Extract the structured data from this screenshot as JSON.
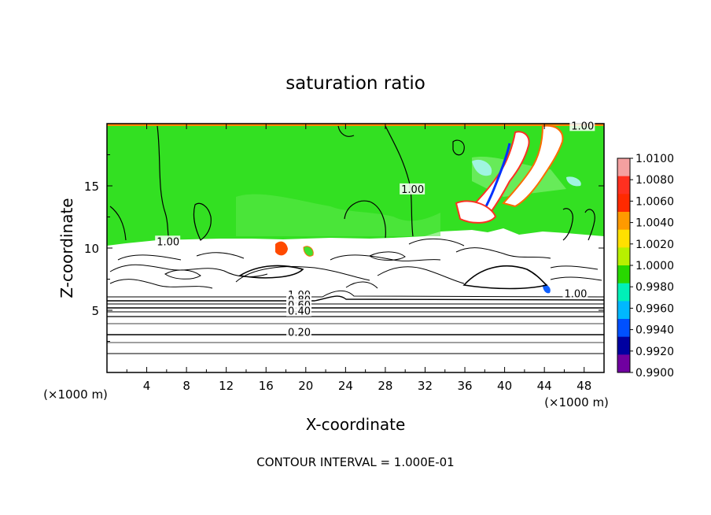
{
  "chart_data": {
    "type": "heatmap",
    "title": "saturation ratio",
    "xlabel": "X-coordinate",
    "ylabel": "Z-coordinate",
    "x_unit": "(×1000 m)",
    "xlim": [
      0,
      50
    ],
    "ylim": [
      0,
      20
    ],
    "x_ticks": [
      "4",
      "8",
      "12",
      "16",
      "20",
      "24",
      "28",
      "32",
      "36",
      "40",
      "44",
      "48"
    ],
    "x_tick_values": [
      4,
      8,
      12,
      16,
      20,
      24,
      28,
      32,
      36,
      40,
      44,
      48
    ],
    "y_ticks": [
      "5",
      "10",
      "15"
    ],
    "y_tick_values": [
      5,
      10,
      15
    ],
    "footer": "CONTOUR INTERVAL = 1.000E-01",
    "colorbar": {
      "levels": [
        "1.0100",
        "1.0080",
        "1.0060",
        "1.0040",
        "1.0020",
        "1.0000",
        "0.9980",
        "0.9960",
        "0.9940",
        "0.9920",
        "0.9900"
      ],
      "colors": [
        "#f4a0a0",
        "#ff3020",
        "#ff2a00",
        "#ff9a00",
        "#ffe000",
        "#b8f000",
        "#28d800",
        "#00f0b8",
        "#00b8ff",
        "#0050ff",
        "#0000a0",
        "#7000a0"
      ]
    },
    "contour_labels": [
      {
        "text": "1.00",
        "x": 5.0,
        "z": 10.3
      },
      {
        "text": "1.00",
        "x": 29.6,
        "z": 14.5
      },
      {
        "text": "1.00",
        "x": 18.2,
        "z": 6.0
      },
      {
        "text": "0.80",
        "x": 18.2,
        "z": 5.6
      },
      {
        "text": "0.60",
        "x": 18.2,
        "z": 5.2
      },
      {
        "text": "0.40",
        "x": 18.2,
        "z": 4.7
      },
      {
        "text": "0.20",
        "x": 18.2,
        "z": 3.0
      },
      {
        "text": "1.00",
        "x": 46.0,
        "z": 6.1
      },
      {
        "text": "1.00",
        "x": 46.7,
        "z": 19.6
      }
    ],
    "cloud_top_z": 10.5,
    "horizontal_contour_levels_z": [
      1.4,
      2.0,
      3.0,
      3.6,
      4.2,
      4.6,
      5.0,
      5.3,
      5.6,
      5.9
    ]
  }
}
